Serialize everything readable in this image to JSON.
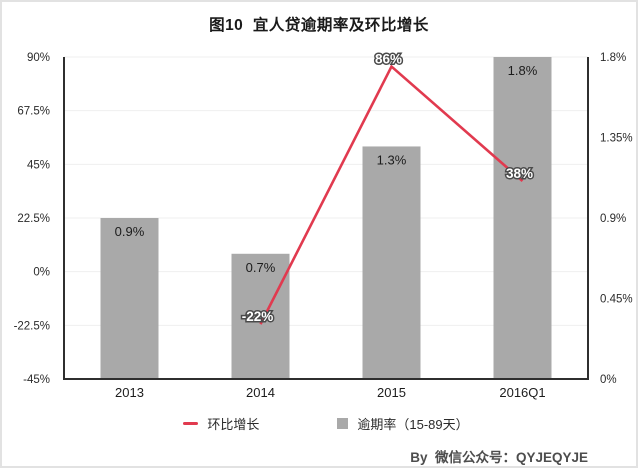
{
  "title": "图10  宜人贷逾期率及环比增长",
  "watermark": "By  微信公众号：QYJEQYJE",
  "colors": {
    "bar": "#a9a9a9",
    "line": "#e13a4f",
    "axis": "#2f2f2f",
    "grid": "#efefef",
    "text": "#1c1c1c",
    "tick": "#2b2b2b",
    "label_outline": "#4a4a4a",
    "label_fill": "#ffffff"
  },
  "legend": [
    {
      "type": "line",
      "label": "环比增长",
      "color": "#e13a4f"
    },
    {
      "type": "bar",
      "label": "逾期率（15-89天）",
      "color": "#a9a9a9"
    }
  ],
  "chart_data": {
    "type": "bar",
    "subtype": "bar+line dual axis",
    "title": "图10  宜人贷逾期率及环比增长",
    "categories": [
      "2013",
      "2014",
      "2015",
      "2016Q1"
    ],
    "series": [
      {
        "name": "逾期率（15-89天）",
        "type": "bar",
        "axis": "right",
        "values": [
          0.9,
          0.7,
          1.3,
          1.8
        ],
        "labels": [
          "0.9%",
          "0.7%",
          "1.3%",
          "1.8%"
        ],
        "color": "#a9a9a9"
      },
      {
        "name": "环比增长",
        "type": "line",
        "axis": "left",
        "values": [
          null,
          -22,
          86,
          38
        ],
        "labels": [
          null,
          "-22%",
          "86%",
          "38%"
        ],
        "color": "#e13a4f"
      }
    ],
    "left_axis": {
      "ticks": [
        "90%",
        "67.5%",
        "45%",
        "22.5%",
        "0%",
        "-22.5%",
        "-45%"
      ],
      "min": -45,
      "max": 90
    },
    "right_axis": {
      "ticks": [
        "1.8%",
        "1.35%",
        "0.9%",
        "0.45%",
        "0%"
      ],
      "min": 0,
      "max": 1.8
    },
    "grid": true,
    "legend_position": "bottom"
  }
}
